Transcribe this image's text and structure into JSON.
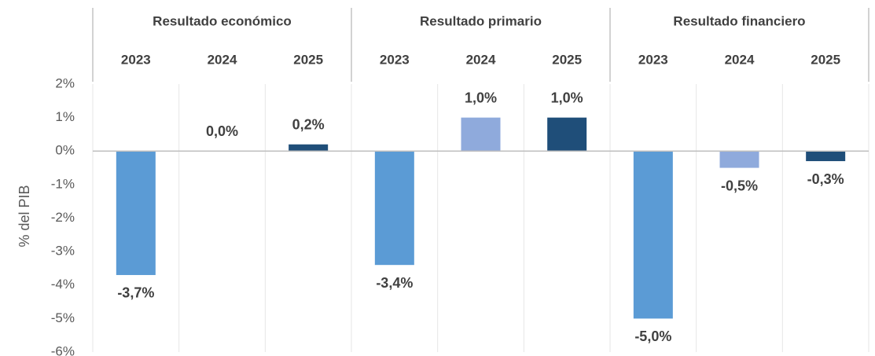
{
  "chart_data": {
    "type": "grouped-bar",
    "ylabel": "% del PIB",
    "groups": [
      "Resultado económico",
      "Resultado primario",
      "Resultado financiero"
    ],
    "series": [
      {
        "name": "2023",
        "color": "#5b9bd5",
        "values": [
          -3.7,
          -3.4,
          -5.0
        ],
        "value_labels": [
          "-3,7%",
          "-3,4%",
          "-5,0%"
        ]
      },
      {
        "name": "2024",
        "color": "#8faadc",
        "values": [
          0.0,
          1.0,
          -0.5
        ],
        "value_labels": [
          "0,0%",
          "1,0%",
          "-0,5%"
        ]
      },
      {
        "name": "2025",
        "color": "#1f4e79",
        "values": [
          0.2,
          1.0,
          -0.3
        ],
        "value_labels": [
          "0,2%",
          "1,0%",
          "-0,3%"
        ]
      }
    ],
    "ylim": [
      -6,
      2
    ],
    "yticks": [
      {
        "value": 2,
        "label": "2%"
      },
      {
        "value": 1,
        "label": "1%"
      },
      {
        "value": 0,
        "label": "0%"
      },
      {
        "value": -1,
        "label": "-1%"
      },
      {
        "value": -2,
        "label": "-2%"
      },
      {
        "value": -3,
        "label": "-3%"
      },
      {
        "value": -4,
        "label": "-4%"
      },
      {
        "value": -5,
        "label": "-5%"
      },
      {
        "value": -6,
        "label": "-6%"
      }
    ]
  }
}
